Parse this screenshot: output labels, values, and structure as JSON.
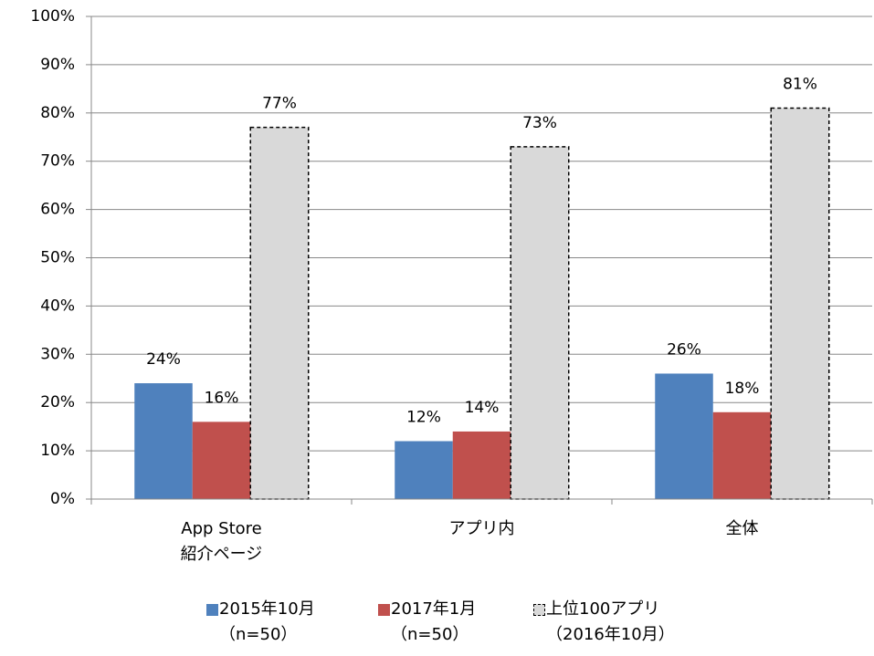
{
  "chart_data": {
    "type": "bar",
    "categories": [
      "App Store\n紹介ページ",
      "アプリ内",
      "全体"
    ],
    "series": [
      {
        "name": "2015年10月\n（n=50）",
        "color": "#4f81bd",
        "values": [
          24,
          12,
          26
        ],
        "value_labels": [
          "24%",
          "12%",
          "26%"
        ]
      },
      {
        "name": "2017年1月\n（n=50）",
        "color": "#c0504d",
        "values": [
          16,
          14,
          18
        ],
        "value_labels": [
          "16%",
          "14%",
          "18%"
        ]
      },
      {
        "name": "上位100アプリ\n（2016年10月）",
        "color": "#d9d9d9",
        "dashed": true,
        "values": [
          77,
          73,
          81
        ],
        "value_labels": [
          "77%",
          "73%",
          "81%"
        ]
      }
    ],
    "ylim": [
      0,
      100
    ],
    "yticks": [
      {
        "value": 0,
        "label": "0%"
      },
      {
        "value": 10,
        "label": "10%"
      },
      {
        "value": 20,
        "label": "20%"
      },
      {
        "value": 30,
        "label": "30%"
      },
      {
        "value": 40,
        "label": "40%"
      },
      {
        "value": 50,
        "label": "50%"
      },
      {
        "value": 60,
        "label": "60%"
      },
      {
        "value": 70,
        "label": "70%"
      },
      {
        "value": 80,
        "label": "80%"
      },
      {
        "value": 90,
        "label": "90%"
      },
      {
        "value": 100,
        "label": "100%"
      }
    ],
    "grid": true,
    "legend": "bottom"
  }
}
